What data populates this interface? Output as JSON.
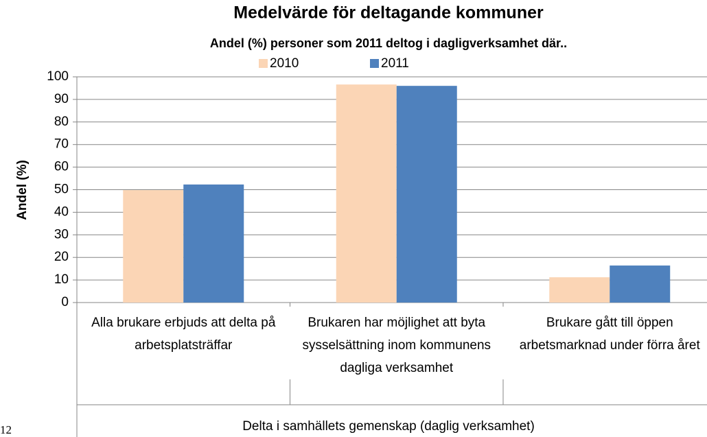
{
  "chart_data": {
    "type": "bar",
    "title": "Medelvärde för deltagande kommuner",
    "subtitle": "Andel (%) personer som 2011 deltog i dagligverksamhet där..",
    "y_label": "Andel (%)",
    "group_label": "Delta i samhällets gemenskap (daglig verksamhet)",
    "categories": [
      "Alla brukare erbjuds att delta på arbetsplatsträffar",
      "Brukaren har möjlighet att byta sysselsättning inom kommunens dagliga verksamhet",
      "Brukare gått till öppen arbetsmarknad under förra året"
    ],
    "series": [
      {
        "name": "2010",
        "color": "#fbd5b5",
        "values": [
          49.8,
          96.6,
          11.2
        ]
      },
      {
        "name": "2011",
        "color": "#4f81bd",
        "values": [
          52.3,
          96.0,
          16.4
        ]
      }
    ],
    "ylim": [
      0,
      100
    ],
    "yticks": [
      0,
      10,
      20,
      30,
      40,
      50,
      60,
      70,
      80,
      90,
      100
    ],
    "grid": true,
    "legend": "top"
  },
  "page_fragment": "12"
}
